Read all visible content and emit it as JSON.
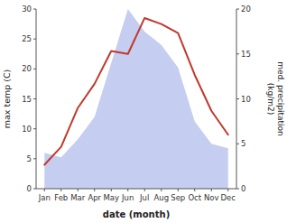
{
  "chart_data": {
    "type": "line",
    "categories": [
      "Jan",
      "Feb",
      "Mar",
      "Apr",
      "May",
      "Jun",
      "Jul",
      "Aug",
      "Sep",
      "Oct",
      "Nov",
      "Dec"
    ],
    "series": [
      {
        "type": "area",
        "axis": "y2",
        "color": "#c5cef0",
        "values": [
          4.0,
          3.5,
          5.5,
          8.0,
          14.0,
          20.0,
          17.5,
          16.0,
          13.5,
          7.5,
          5.0,
          4.5
        ]
      },
      {
        "type": "line",
        "color": "#c0392b",
        "values": [
          4.0,
          7.0,
          13.5,
          17.5,
          23.0,
          22.5,
          28.5,
          27.5,
          26.0,
          19.0,
          13.0,
          9.0
        ]
      }
    ],
    "xlabel": "date (month)",
    "ylabel": "max temp (C)",
    "y2label": "med. precipitation\n(kg/m2)",
    "ylim": [
      0,
      30
    ],
    "yticks": [
      0,
      5,
      10,
      15,
      20,
      25,
      30
    ],
    "y2lim": [
      0,
      20
    ],
    "y2ticks": [
      0,
      5,
      10,
      15,
      20
    ],
    "grid": false
  }
}
